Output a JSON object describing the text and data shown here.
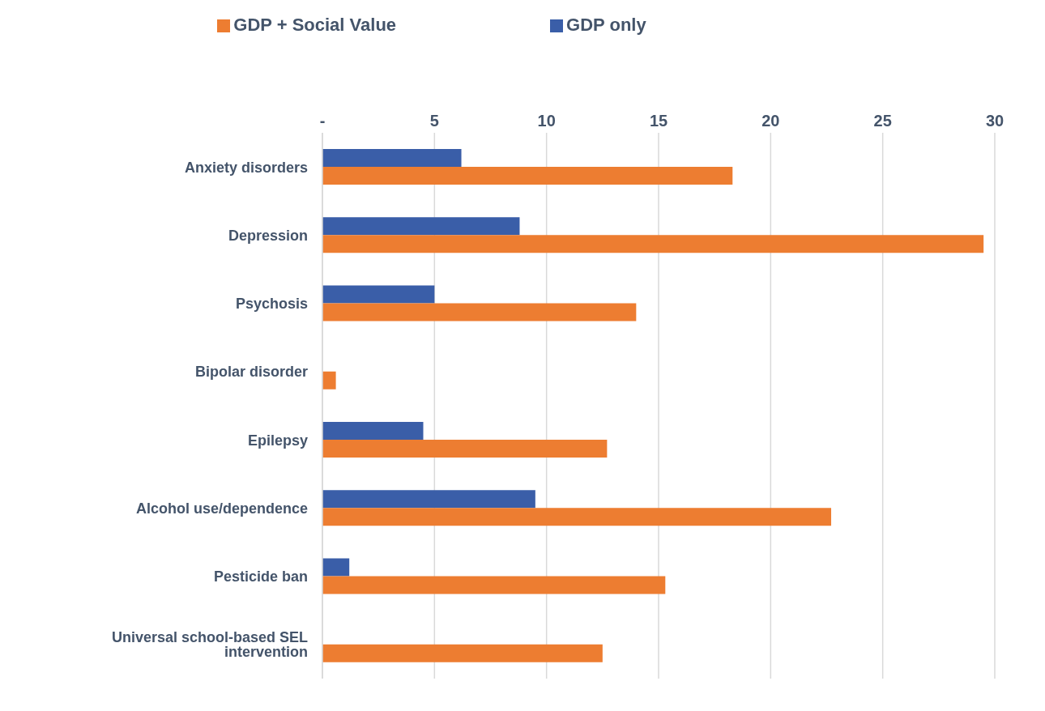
{
  "chart_data": {
    "type": "bar",
    "orientation": "horizontal",
    "categories": [
      "Anxiety disorders",
      "Depression",
      "Psychosis",
      "Bipolar disorder",
      "Epilepsy",
      "Alcohol use/dependence",
      "Pesticide ban",
      "Universal school-based SEL intervention"
    ],
    "series": [
      {
        "name": "GDP only",
        "color": "#3a5ea8",
        "values": [
          6.2,
          8.8,
          5.0,
          0,
          4.5,
          9.5,
          1.2,
          0
        ]
      },
      {
        "name": "GDP + Social Value",
        "color": "#ed7d31",
        "values": [
          18.3,
          29.5,
          14.0,
          0.6,
          12.7,
          22.7,
          15.3,
          12.5
        ]
      }
    ],
    "xlim": [
      0,
      30
    ],
    "xticks": [
      {
        "value": 0,
        "label": "-"
      },
      5,
      10,
      15,
      20,
      25,
      30
    ],
    "grid": "x",
    "legend": "top"
  }
}
